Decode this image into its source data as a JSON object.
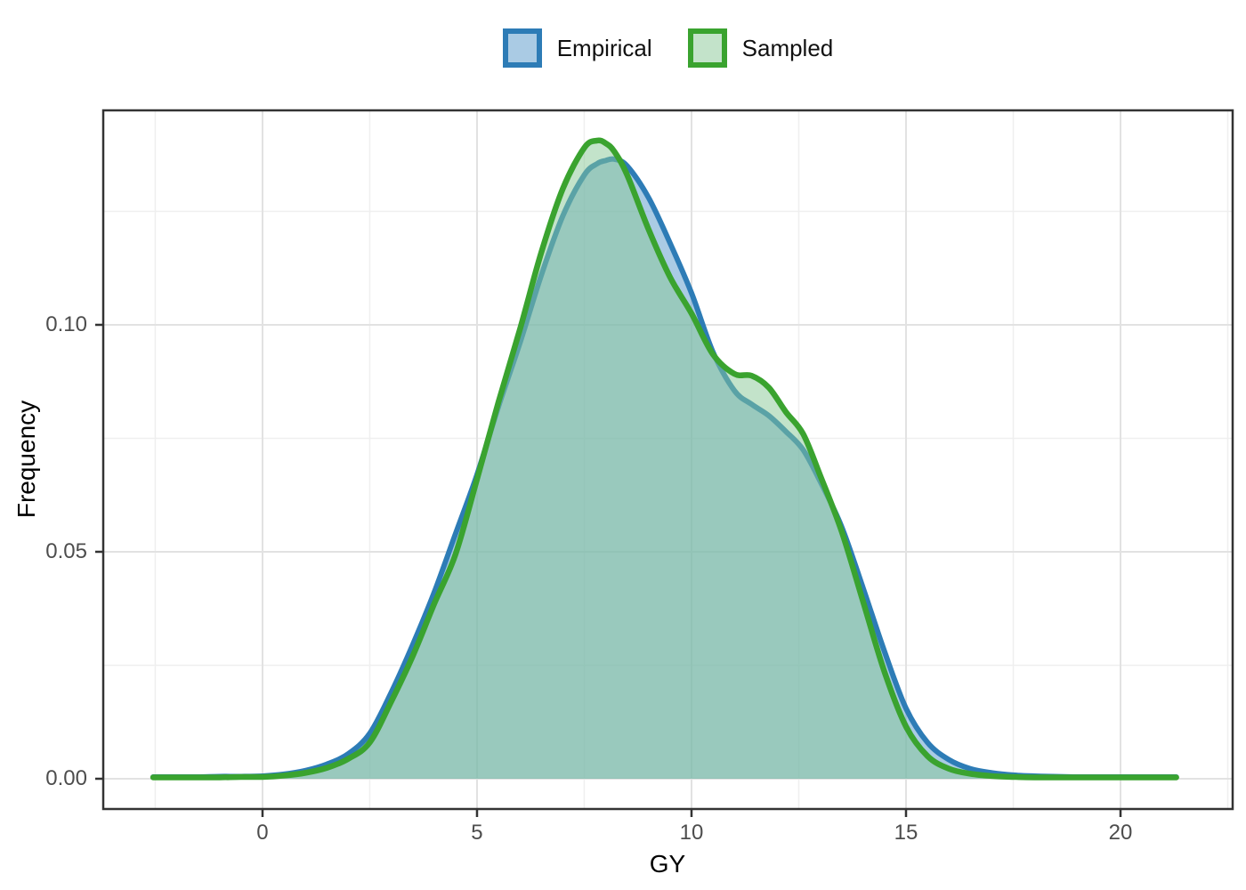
{
  "chart_data": {
    "type": "density-area",
    "title": "",
    "xlabel": "GY",
    "ylabel": "Frequency",
    "legend_position": "top-center",
    "grid": "major-and-minor",
    "xlim": [
      -3.713,
      22.614
    ],
    "ylim": [
      -0.006667,
      0.14725
    ],
    "x_ticks": [
      0,
      5,
      10,
      15,
      20
    ],
    "x_tick_labels": [
      "0",
      "5",
      "10",
      "15",
      "20"
    ],
    "y_ticks": [
      0,
      0.05,
      0.1
    ],
    "y_tick_labels": [
      "0.00",
      "0.05",
      "0.10"
    ],
    "x": [
      -2.55,
      -2,
      -1.5,
      -1,
      -0.5,
      0,
      0.5,
      1,
      1.5,
      2,
      2.5,
      3,
      3.5,
      4,
      4.5,
      5,
      5.5,
      6,
      6.5,
      7,
      7.5,
      7.8,
      8,
      8.2,
      8.5,
      9,
      9.5,
      10,
      10.5,
      11,
      11.4,
      11.8,
      12.2,
      12.6,
      13,
      13.5,
      14,
      14.5,
      15,
      15.5,
      16,
      16.5,
      17,
      17.5,
      18,
      19,
      20,
      21,
      21.3
    ],
    "series": [
      {
        "name": "Empirical",
        "color": "#2d7cb6",
        "fill": "rgba(100,160,205,0.55)",
        "values": [
          0.0004,
          0.0004,
          0.0004,
          0.0005,
          0.0005,
          0.0006,
          0.001,
          0.0018,
          0.0032,
          0.0055,
          0.01,
          0.019,
          0.0295,
          0.041,
          0.054,
          0.067,
          0.082,
          0.096,
          0.111,
          0.124,
          0.133,
          0.1355,
          0.1362,
          0.1365,
          0.135,
          0.128,
          0.118,
          0.107,
          0.094,
          0.0855,
          0.0825,
          0.08,
          0.0765,
          0.0725,
          0.0655,
          0.0555,
          0.042,
          0.028,
          0.0155,
          0.008,
          0.0042,
          0.0022,
          0.0013,
          0.0008,
          0.0006,
          0.0004,
          0.0004,
          0.0004,
          0.0004
        ]
      },
      {
        "name": "Sampled",
        "color": "#3aa32f",
        "fill": "rgba(135,200,150,0.5)",
        "values": [
          0.0003,
          0.0003,
          0.0003,
          0.0003,
          0.0004,
          0.0004,
          0.0007,
          0.0013,
          0.0024,
          0.0044,
          0.008,
          0.017,
          0.027,
          0.0385,
          0.0495,
          0.066,
          0.083,
          0.099,
          0.116,
          0.13,
          0.139,
          0.1406,
          0.14,
          0.1382,
          0.133,
          0.121,
          0.1105,
          0.1025,
          0.0935,
          0.0892,
          0.0888,
          0.0862,
          0.0808,
          0.076,
          0.0668,
          0.0545,
          0.039,
          0.0235,
          0.0115,
          0.005,
          0.0022,
          0.0011,
          0.0006,
          0.0004,
          0.0003,
          0.0003,
          0.0003,
          0.0003,
          0.0003
        ]
      }
    ],
    "style": {
      "panel_border_color": "#333333",
      "tick_color": "#333333",
      "grid_major_color": "#e2e2e2",
      "grid_minor_color": "#efefef",
      "tick_label_color": "#4d4d4d",
      "axis_title_color": "#000000"
    }
  },
  "legend": {
    "items": [
      {
        "label": "Empirical"
      },
      {
        "label": "Sampled"
      }
    ]
  }
}
